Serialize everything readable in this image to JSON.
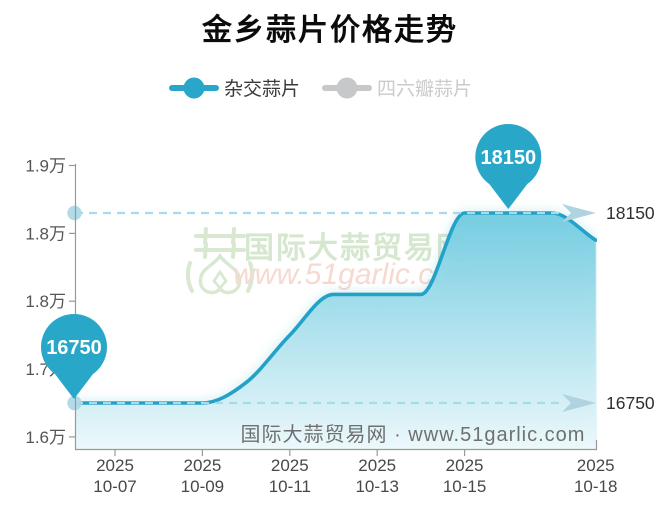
{
  "title": "金乡蒜片价格走势",
  "legend": {
    "items": [
      {
        "label": "杂交蒜片",
        "color": "#29a6c9",
        "active": true
      },
      {
        "label": "四六瓣蒜片",
        "color": "#c6c8ca",
        "active": false
      }
    ]
  },
  "watermark": {
    "site_name": "国际大蒜贸易网",
    "site_url": "www.51garlic.com",
    "footer": "国际大蒜贸易网 · www.51garlic.com"
  },
  "chart_data": {
    "type": "area",
    "title": "金乡蒜片价格走势",
    "xlabel": "",
    "ylabel": "",
    "grid": false,
    "legend_position": "top",
    "x": [
      "10-06",
      "10-07",
      "10-08",
      "10-09",
      "10-10",
      "10-11",
      "10-12",
      "10-13",
      "10-14",
      "10-15",
      "10-16",
      "10-17",
      "10-18"
    ],
    "series": [
      {
        "name": "杂交蒜片",
        "color": "#22a2c6",
        "visible": true,
        "values": [
          16750,
          16750,
          16750,
          16750,
          16900,
          17250,
          17550,
          17550,
          17550,
          18150,
          18150,
          18150,
          17950
        ]
      },
      {
        "name": "四六瓣蒜片",
        "color": "#c6c8ca",
        "visible": false,
        "values": []
      }
    ],
    "x_ticks": [
      {
        "year": "2025",
        "date": "10-07"
      },
      {
        "year": "2025",
        "date": "10-09"
      },
      {
        "year": "2025",
        "date": "10-11"
      },
      {
        "year": "2025",
        "date": "10-13"
      },
      {
        "year": "2025",
        "date": "10-15"
      },
      {
        "year": "2025",
        "date": "10-18"
      }
    ],
    "y_ticks": [
      {
        "value": 18500,
        "label": "1.9万"
      },
      {
        "value": 18000,
        "label": "1.8万"
      },
      {
        "value": 17500,
        "label": "1.8万"
      },
      {
        "value": 17000,
        "label": "1.7万"
      },
      {
        "value": 16500,
        "label": "1.6万"
      }
    ],
    "ylim": [
      16400,
      18600
    ],
    "markers": [
      {
        "label": "16750",
        "value": 16750,
        "x": "10-06"
      },
      {
        "label": "18150",
        "value": 18150,
        "x": "10-16"
      }
    ],
    "ref_lines": [
      {
        "label": "18150",
        "value": 18150
      },
      {
        "label": "16750",
        "value": 16750
      }
    ]
  },
  "colors": {
    "line": "#22a2c6",
    "balloon": "#29a7c9",
    "dashed_ref": "#a6dbec",
    "arrow": "#afd3e0",
    "axis": "#999999",
    "area_gradient_top": "#73cce1",
    "area_gradient_bottom": "#edf9fc",
    "watermark_green": "#d9e8d1",
    "watermark_pink": "#f6d9d0"
  }
}
